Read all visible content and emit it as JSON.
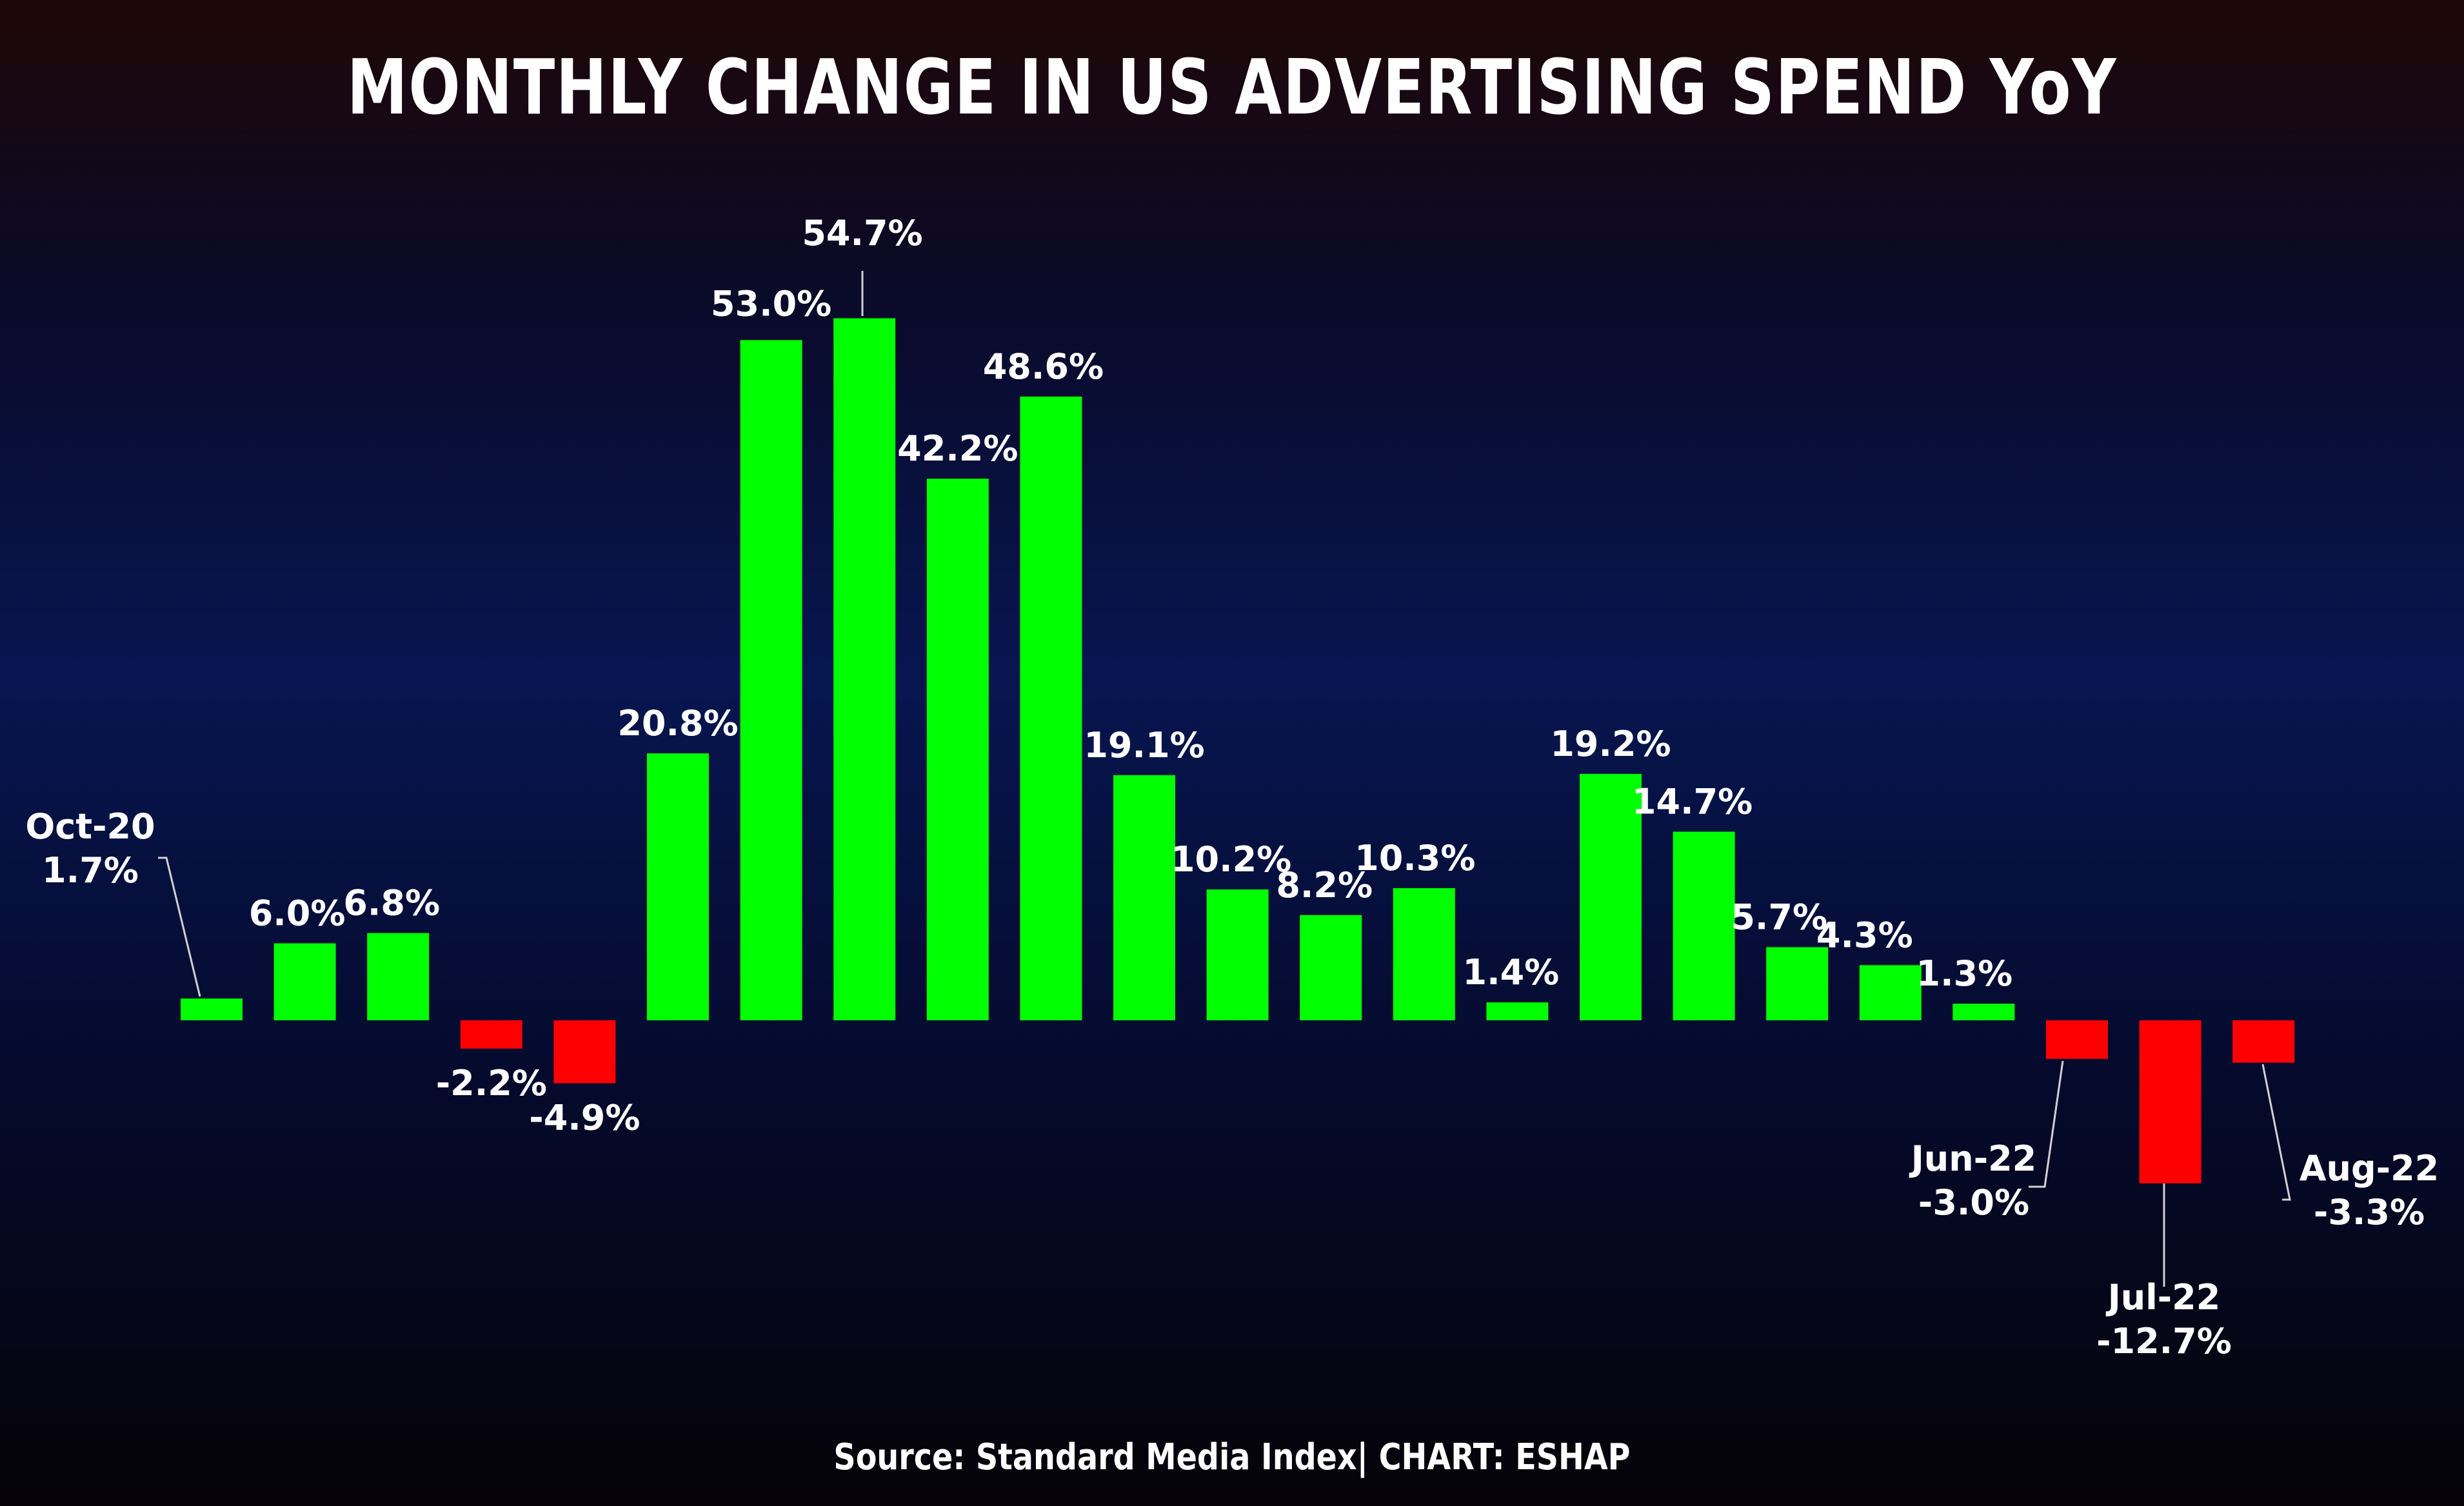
{
  "chart_data": {
    "type": "bar",
    "title": "MONTHLY CHANGE IN US ADVERTISING SPEND YoY",
    "source": "Source: Standard Media Index| CHART: ESHAP",
    "unit": "%",
    "categories": [
      "Oct-20",
      "",
      "",
      "",
      "",
      "",
      "",
      "",
      "",
      "",
      "",
      "",
      "",
      "",
      "",
      "",
      "",
      "",
      "",
      "",
      "Jun-22",
      "Jul-22",
      "Aug-22"
    ],
    "values": [
      1.7,
      6.0,
      6.8,
      -2.2,
      -4.9,
      20.8,
      53.0,
      54.7,
      42.2,
      48.6,
      19.1,
      10.2,
      8.2,
      10.3,
      1.4,
      19.2,
      14.7,
      5.7,
      4.3,
      1.3,
      -3.0,
      -12.7,
      -3.3
    ],
    "labels": [
      "1.7%",
      "6.0%",
      "6.8%",
      "-2.2%",
      "-4.9%",
      "20.8%",
      "53.0%",
      "54.7%",
      "42.2%",
      "48.6%",
      "19.1%",
      "10.2%",
      "8.2%",
      "10.3%",
      "1.4%",
      "19.2%",
      "14.7%",
      "5.7%",
      "4.3%",
      "1.3%",
      "-3.0%",
      "-12.7%",
      "-3.3%"
    ],
    "colors": {
      "positive": "#00ff00",
      "negative": "#ff0000"
    },
    "grid": false,
    "legend": "none"
  }
}
